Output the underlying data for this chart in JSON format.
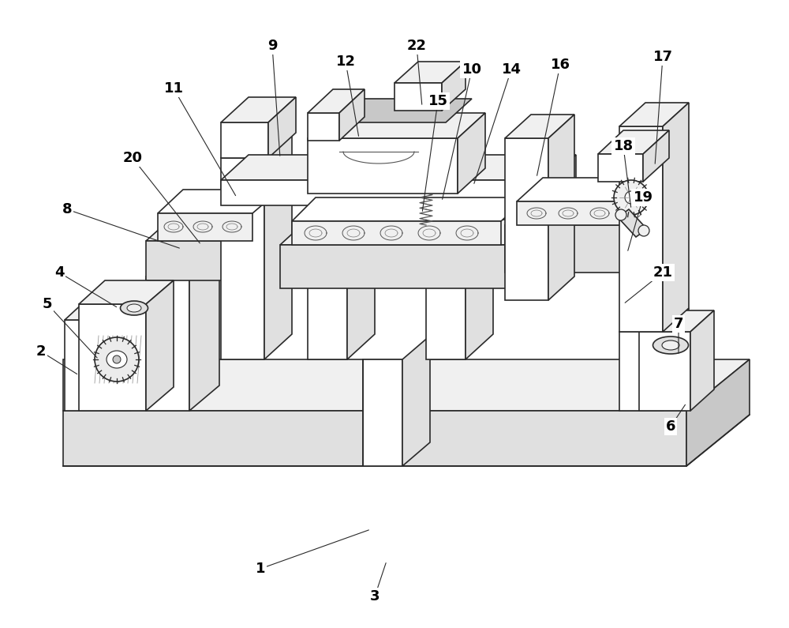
{
  "bg_color": "#ffffff",
  "lc": "#2a2a2a",
  "fc_white": "#ffffff",
  "fc_light": "#f0f0f0",
  "fc_mid": "#e0e0e0",
  "fc_dark": "#c8c8c8",
  "fc_darker": "#b0b0b0",
  "lw_main": 1.2,
  "figsize": [
    10.0,
    7.95
  ],
  "dpi": 100,
  "annotations": [
    [
      "1",
      330,
      720,
      470,
      670
    ],
    [
      "2",
      52,
      445,
      100,
      475
    ],
    [
      "3",
      475,
      755,
      490,
      710
    ],
    [
      "4",
      75,
      345,
      150,
      390
    ],
    [
      "5",
      60,
      385,
      125,
      455
    ],
    [
      "6",
      850,
      540,
      870,
      510
    ],
    [
      "7",
      860,
      410,
      860,
      450
    ],
    [
      "8",
      85,
      265,
      230,
      315
    ],
    [
      "9",
      345,
      58,
      355,
      200
    ],
    [
      "10",
      598,
      88,
      560,
      255
    ],
    [
      "11",
      220,
      112,
      300,
      250
    ],
    [
      "12",
      438,
      78,
      455,
      175
    ],
    [
      "14",
      648,
      88,
      600,
      235
    ],
    [
      "15",
      555,
      128,
      535,
      270
    ],
    [
      "16",
      710,
      82,
      680,
      225
    ],
    [
      "17",
      840,
      72,
      830,
      210
    ],
    [
      "18",
      790,
      185,
      800,
      265
    ],
    [
      "19",
      815,
      250,
      795,
      320
    ],
    [
      "20",
      168,
      200,
      255,
      310
    ],
    [
      "21",
      840,
      345,
      790,
      385
    ],
    [
      "22",
      528,
      58,
      535,
      135
    ]
  ]
}
